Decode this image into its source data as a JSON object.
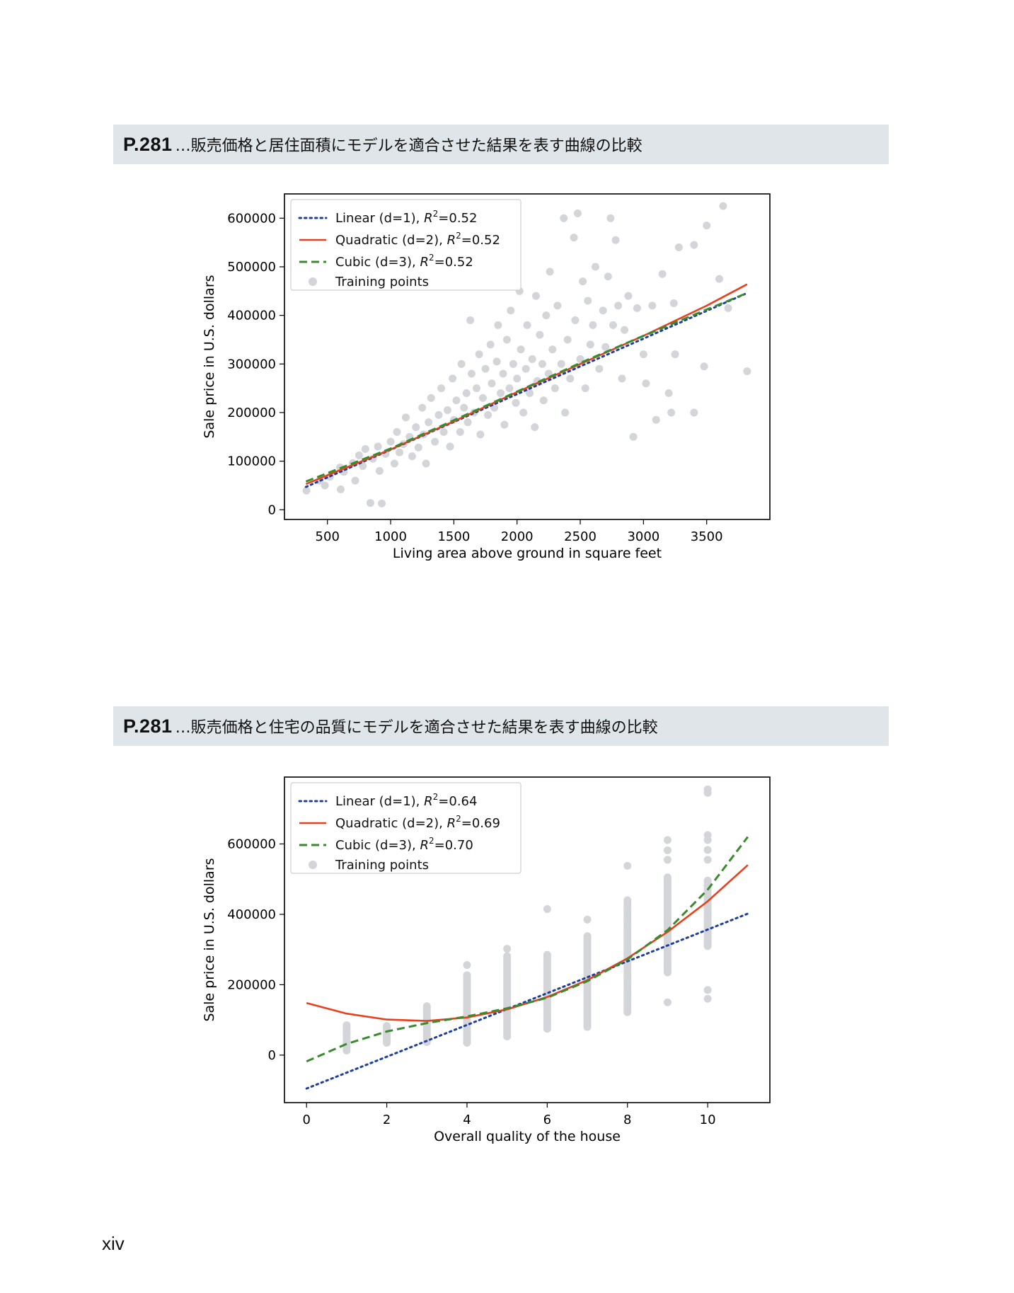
{
  "sections": [
    {
      "page_ref": "P.281",
      "caption": "…販売価格と居住面積にモデルを適合させた結果を表す曲線の比較"
    },
    {
      "page_ref": "P.281",
      "caption": "…販売価格と住宅の品質にモデルを適合させた結果を表す曲線の比較"
    }
  ],
  "folio": "xiv",
  "colors": {
    "linear": "#1f3fa0",
    "quadratic": "#e8401c",
    "cubic": "#3a8a2e",
    "points": "#d3d5d8",
    "banner": "#dfe5e8"
  },
  "chart_data": [
    {
      "type": "scatter",
      "xlabel": "Living area above ground in square feet",
      "ylabel": "Sale price in U.S. dollars",
      "xlim": [
        160,
        4000
      ],
      "ylim": [
        -20000,
        650000
      ],
      "xticks": [
        500,
        1000,
        1500,
        2000,
        2500,
        3000,
        3500
      ],
      "xtick_labels": [
        "500",
        "1000",
        "1500",
        "2000",
        "2500",
        "3000",
        "3500"
      ],
      "yticks": [
        0,
        100000,
        200000,
        300000,
        400000,
        500000,
        600000
      ],
      "ytick_labels": [
        "0",
        "100000",
        "200000",
        "300000",
        "400000",
        "500000",
        "600000"
      ],
      "legend_position": "top-left",
      "series": [
        {
          "name": "Linear (d=1)",
          "r2": "0.52",
          "style": "dotted",
          "color_key": "linear",
          "x": [
            330,
            3820
          ],
          "y": [
            47000,
            446000
          ]
        },
        {
          "name": "Quadratic (d=2)",
          "r2": "0.52",
          "style": "solid",
          "color_key": "quadratic",
          "x": [
            330,
            1000,
            1500,
            2000,
            2500,
            3000,
            3500,
            3820
          ],
          "y": [
            53000,
            124000,
            182000,
            242000,
            300000,
            358000,
            420000,
            464000
          ]
        },
        {
          "name": "Cubic (d=3)",
          "r2": "0.52",
          "style": "dashed",
          "color_key": "cubic",
          "x": [
            330,
            1000,
            1500,
            2000,
            2500,
            3000,
            3500,
            3820
          ],
          "y": [
            58000,
            126000,
            184000,
            243000,
            302000,
            358000,
            412000,
            446000
          ]
        }
      ],
      "points_name": "Training points",
      "points": [
        [
          334,
          39300
        ],
        [
          438,
          60000
        ],
        [
          480,
          50000
        ],
        [
          520,
          68000
        ],
        [
          600,
          87000
        ],
        [
          605,
          42000
        ],
        [
          630,
          78000
        ],
        [
          700,
          96000
        ],
        [
          720,
          60000
        ],
        [
          750,
          112000
        ],
        [
          780,
          90000
        ],
        [
          800,
          125000
        ],
        [
          840,
          14000
        ],
        [
          860,
          105000
        ],
        [
          900,
          130000
        ],
        [
          912,
          80000
        ],
        [
          930,
          13000
        ],
        [
          960,
          115000
        ],
        [
          1000,
          140000
        ],
        [
          1030,
          95000
        ],
        [
          1050,
          160000
        ],
        [
          1070,
          118000
        ],
        [
          1100,
          135000
        ],
        [
          1120,
          190000
        ],
        [
          1150,
          150000
        ],
        [
          1170,
          110000
        ],
        [
          1200,
          170000
        ],
        [
          1220,
          128000
        ],
        [
          1250,
          210000
        ],
        [
          1260,
          155000
        ],
        [
          1280,
          95000
        ],
        [
          1300,
          180000
        ],
        [
          1320,
          230000
        ],
        [
          1350,
          140000
        ],
        [
          1380,
          195000
        ],
        [
          1400,
          250000
        ],
        [
          1420,
          160000
        ],
        [
          1450,
          205000
        ],
        [
          1470,
          130000
        ],
        [
          1490,
          270000
        ],
        [
          1500,
          185000
        ],
        [
          1520,
          225000
        ],
        [
          1550,
          160000
        ],
        [
          1560,
          300000
        ],
        [
          1580,
          210000
        ],
        [
          1600,
          240000
        ],
        [
          1610,
          180000
        ],
        [
          1630,
          390000
        ],
        [
          1640,
          280000
        ],
        [
          1660,
          200000
        ],
        [
          1680,
          250000
        ],
        [
          1700,
          320000
        ],
        [
          1710,
          155000
        ],
        [
          1730,
          230000
        ],
        [
          1750,
          290000
        ],
        [
          1770,
          195000
        ],
        [
          1790,
          340000
        ],
        [
          1800,
          260000
        ],
        [
          1820,
          210000
        ],
        [
          1840,
          305000
        ],
        [
          1850,
          380000
        ],
        [
          1870,
          240000
        ],
        [
          1890,
          280000
        ],
        [
          1900,
          175000
        ],
        [
          1920,
          350000
        ],
        [
          1940,
          250000
        ],
        [
          1950,
          410000
        ],
        [
          1970,
          300000
        ],
        [
          1990,
          220000
        ],
        [
          2000,
          270000
        ],
        [
          2020,
          450000
        ],
        [
          2030,
          330000
        ],
        [
          2050,
          200000
        ],
        [
          2070,
          290000
        ],
        [
          2080,
          380000
        ],
        [
          2100,
          240000
        ],
        [
          2120,
          310000
        ],
        [
          2140,
          170000
        ],
        [
          2150,
          440000
        ],
        [
          2160,
          265000
        ],
        [
          2180,
          360000
        ],
        [
          2200,
          300000
        ],
        [
          2210,
          225000
        ],
        [
          2230,
          400000
        ],
        [
          2250,
          280000
        ],
        [
          2260,
          490000
        ],
        [
          2280,
          330000
        ],
        [
          2300,
          250000
        ],
        [
          2320,
          420000
        ],
        [
          2350,
          300000
        ],
        [
          2370,
          600000
        ],
        [
          2380,
          200000
        ],
        [
          2400,
          350000
        ],
        [
          2420,
          270000
        ],
        [
          2450,
          560000
        ],
        [
          2460,
          390000
        ],
        [
          2480,
          610000
        ],
        [
          2500,
          310000
        ],
        [
          2520,
          470000
        ],
        [
          2540,
          250000
        ],
        [
          2560,
          430000
        ],
        [
          2580,
          340000
        ],
        [
          2600,
          380000
        ],
        [
          2620,
          500000
        ],
        [
          2650,
          290000
        ],
        [
          2680,
          410000
        ],
        [
          2700,
          335000
        ],
        [
          2720,
          480000
        ],
        [
          2740,
          600000
        ],
        [
          2760,
          380000
        ],
        [
          2780,
          555000
        ],
        [
          2800,
          420000
        ],
        [
          2830,
          270000
        ],
        [
          2850,
          370000
        ],
        [
          2880,
          440000
        ],
        [
          2920,
          150000
        ],
        [
          2950,
          415000
        ],
        [
          3000,
          320000
        ],
        [
          3020,
          260000
        ],
        [
          3070,
          420000
        ],
        [
          3100,
          185000
        ],
        [
          3150,
          485000
        ],
        [
          3200,
          240000
        ],
        [
          3220,
          200000
        ],
        [
          3240,
          425000
        ],
        [
          3250,
          320000
        ],
        [
          3280,
          540000
        ],
        [
          3400,
          200000
        ],
        [
          3400,
          545000
        ],
        [
          3480,
          295000
        ],
        [
          3500,
          585000
        ],
        [
          3600,
          475000
        ],
        [
          3630,
          625000
        ],
        [
          3670,
          415000
        ],
        [
          3820,
          285000
        ]
      ]
    },
    {
      "type": "scatter",
      "xlabel": "Overall quality of the house",
      "ylabel": "Sale price in U.S. dollars",
      "xlim": [
        -0.55,
        11.55
      ],
      "ylim": [
        -135000,
        790000
      ],
      "xticks": [
        0,
        2,
        4,
        6,
        8,
        10
      ],
      "xtick_labels": [
        "0",
        "2",
        "4",
        "6",
        "8",
        "10"
      ],
      "yticks": [
        0,
        200000,
        400000,
        600000
      ],
      "ytick_labels": [
        "0",
        "200000",
        "400000",
        "600000"
      ],
      "legend_position": "top-left",
      "series": [
        {
          "name": "Linear (d=1)",
          "r2": "0.64",
          "style": "dotted",
          "color_key": "linear",
          "x": [
            0,
            11
          ],
          "y": [
            -95000,
            402000
          ]
        },
        {
          "name": "Quadratic (d=2)",
          "r2": "0.69",
          "style": "solid",
          "color_key": "quadratic",
          "x": [
            0,
            1,
            2,
            3,
            4,
            5,
            6,
            7,
            8,
            9,
            10,
            11
          ],
          "y": [
            148000,
            118000,
            101000,
            97000,
            107000,
            130000,
            165000,
            213000,
            275000,
            350000,
            437000,
            540000
          ]
        },
        {
          "name": "Cubic (d=3)",
          "r2": "0.70",
          "style": "dashed",
          "color_key": "cubic",
          "x": [
            0,
            1,
            2,
            3,
            4,
            5,
            6,
            7,
            8,
            9,
            10,
            11
          ],
          "y": [
            -18000,
            32000,
            67000,
            91000,
            110000,
            133000,
            163000,
            210000,
            272000,
            355000,
            470000,
            620000
          ]
        }
      ],
      "points_name": "Training points",
      "point_columns": [
        {
          "x": 1,
          "min": 13000,
          "max": 88000,
          "extra": [
            61000
          ]
        },
        {
          "x": 2,
          "min": 35000,
          "max": 87000,
          "extra": []
        },
        {
          "x": 3,
          "min": 37000,
          "max": 144000,
          "extra": []
        },
        {
          "x": 4,
          "min": 35000,
          "max": 230000,
          "extra": [
            256000
          ]
        },
        {
          "x": 5,
          "min": 53000,
          "max": 285000,
          "extra": [
            302000
          ]
        },
        {
          "x": 6,
          "min": 75000,
          "max": 290000,
          "extra": [
            415000
          ]
        },
        {
          "x": 7,
          "min": 80000,
          "max": 340000,
          "extra": [
            385000
          ]
        },
        {
          "x": 8,
          "min": 122000,
          "max": 445000,
          "extra": [
            538000
          ]
        },
        {
          "x": 9,
          "min": 235000,
          "max": 505000,
          "extra": [
            150000,
            555000,
            582000,
            611000
          ]
        },
        {
          "x": 10,
          "min": 310000,
          "max": 500000,
          "extra": [
            160000,
            185000,
            555000,
            583000,
            611000,
            625000,
            745000,
            755000
          ]
        }
      ]
    }
  ]
}
